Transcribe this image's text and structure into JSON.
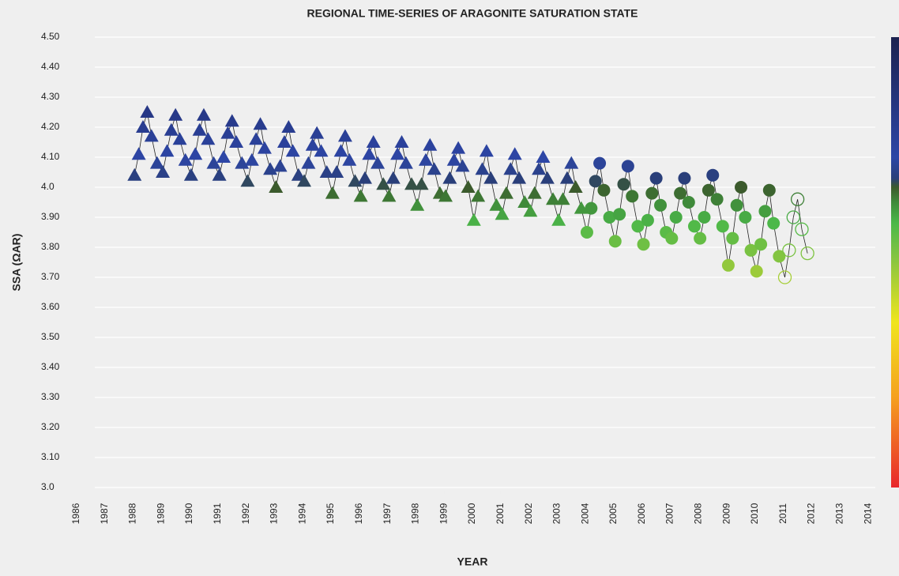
{
  "chart_data": {
    "type": "scatter",
    "title": "REGIONAL TIME-SERIES OF ARAGONITE SATURATION STATE",
    "xlabel": "YEAR",
    "ylabel": "SSA (ΩAR)",
    "xlim": [
      1985.5,
      2014.5
    ],
    "xticks": [
      1986,
      1987,
      1988,
      1989,
      1990,
      1991,
      1992,
      1993,
      1994,
      1995,
      1996,
      1997,
      1998,
      1999,
      2000,
      2001,
      2002,
      2003,
      2004,
      2005,
      2006,
      2007,
      2008,
      2009,
      2010,
      2011,
      2012,
      2013,
      2014
    ],
    "ylim": [
      3.0,
      4.5
    ],
    "yticks": [
      {
        "value": 4.5,
        "label": "4.50"
      },
      {
        "value": 4.4,
        "label": "4.40"
      },
      {
        "value": 4.3,
        "label": "4.30"
      },
      {
        "value": 4.2,
        "label": "4.20"
      },
      {
        "value": 4.1,
        "label": "4.10"
      },
      {
        "value": 4.0,
        "label": "4.0"
      },
      {
        "value": 3.9,
        "label": "3.90"
      },
      {
        "value": 3.8,
        "label": "3.80"
      },
      {
        "value": 3.7,
        "label": "3.70"
      },
      {
        "value": 3.6,
        "label": "3.60"
      },
      {
        "value": 3.5,
        "label": "3.50"
      },
      {
        "value": 3.4,
        "label": "3.40"
      },
      {
        "value": 3.3,
        "label": "3.30"
      },
      {
        "value": 3.2,
        "label": "3.20"
      },
      {
        "value": 3.1,
        "label": "3.10"
      },
      {
        "value": 3.0,
        "label": "3.0"
      }
    ],
    "grid": true,
    "line_color": "#222222",
    "colorscale": [
      {
        "value": 4.5,
        "color": "#1c2250"
      },
      {
        "value": 4.1,
        "color": "#2d46a6"
      },
      {
        "value": 4.03,
        "color": "#2a3f7a"
      },
      {
        "value": 4.0,
        "color": "#3b5a2c"
      },
      {
        "value": 3.95,
        "color": "#3f8a3a"
      },
      {
        "value": 3.88,
        "color": "#4cb849"
      },
      {
        "value": 3.75,
        "color": "#8dc63f"
      },
      {
        "value": 3.55,
        "color": "#f0e51d"
      },
      {
        "value": 3.3,
        "color": "#f5a01f"
      },
      {
        "value": 3.0,
        "color": "#e8262b"
      }
    ],
    "series": [
      {
        "marker": "triangle",
        "filled": true,
        "x": [
          1988.05,
          1988.2,
          1988.35,
          1988.5,
          1988.65,
          1988.85,
          1989.05,
          1989.2,
          1989.35,
          1989.5,
          1989.65,
          1989.85,
          1990.05,
          1990.2,
          1990.35,
          1990.5,
          1990.65,
          1990.85,
          1991.05,
          1991.2,
          1991.35,
          1991.5,
          1991.65,
          1991.85,
          1992.05,
          1992.2,
          1992.35,
          1992.5,
          1992.65,
          1992.85,
          1993.05,
          1993.2,
          1993.35,
          1993.5,
          1993.65,
          1993.85,
          1994.05,
          1994.2,
          1994.35,
          1994.5,
          1994.65,
          1994.85,
          1995.05,
          1995.2,
          1995.35,
          1995.5,
          1995.65,
          1995.85,
          1996.05,
          1996.2,
          1996.35,
          1996.5,
          1996.65,
          1996.85,
          1997.05,
          1997.2,
          1997.35,
          1997.5,
          1997.65,
          1997.85,
          1998.05,
          1998.2,
          1998.35,
          1998.5,
          1998.65,
          1998.85,
          1999.05,
          1999.2,
          1999.35,
          1999.5,
          1999.65,
          1999.85,
          2000.05,
          2000.2,
          2000.35,
          2000.5,
          2000.65,
          2000.85,
          2001.05,
          2001.2,
          2001.35,
          2001.5,
          2001.65,
          2001.85,
          2002.05,
          2002.2,
          2002.35,
          2002.5,
          2002.65,
          2002.85,
          2003.05,
          2003.2,
          2003.35,
          2003.5,
          2003.65,
          2003.85
        ],
        "values": [
          4.04,
          4.11,
          4.2,
          4.25,
          4.17,
          4.08,
          4.05,
          4.12,
          4.19,
          4.24,
          4.16,
          4.09,
          4.04,
          4.11,
          4.19,
          4.24,
          4.16,
          4.08,
          4.04,
          4.1,
          4.18,
          4.22,
          4.15,
          4.08,
          4.02,
          4.09,
          4.16,
          4.21,
          4.13,
          4.06,
          4.0,
          4.07,
          4.15,
          4.2,
          4.12,
          4.04,
          4.02,
          4.08,
          4.14,
          4.18,
          4.12,
          4.05,
          3.98,
          4.05,
          4.12,
          4.17,
          4.09,
          4.02,
          3.97,
          4.03,
          4.11,
          4.15,
          4.08,
          4.01,
          3.97,
          4.03,
          4.11,
          4.15,
          4.08,
          4.01,
          3.94,
          4.01,
          4.09,
          4.14,
          4.06,
          3.98,
          3.97,
          4.03,
          4.09,
          4.13,
          4.07,
          4.0,
          3.89,
          3.97,
          4.06,
          4.12,
          4.03,
          3.94,
          3.91,
          3.98,
          4.06,
          4.11,
          4.03,
          3.95,
          3.92,
          3.98,
          4.06,
          4.1,
          4.03,
          3.96,
          3.89,
          3.96,
          4.03,
          4.08,
          4.0,
          3.93
        ]
      },
      {
        "marker": "circle",
        "filled": true,
        "x": [
          2004.05,
          2004.2,
          2004.35,
          2004.5,
          2004.65,
          2004.85,
          2005.05,
          2005.2,
          2005.35,
          2005.5,
          2005.65,
          2005.85,
          2006.05,
          2006.2,
          2006.35,
          2006.5,
          2006.65,
          2006.85,
          2007.05,
          2007.2,
          2007.35,
          2007.5,
          2007.65,
          2007.85,
          2008.05,
          2008.2,
          2008.35,
          2008.5,
          2008.65,
          2008.85,
          2009.05,
          2009.2,
          2009.35,
          2009.5,
          2009.65,
          2009.85,
          2010.05,
          2010.2,
          2010.35,
          2010.5,
          2010.65,
          2010.85
        ],
        "values": [
          3.85,
          3.93,
          4.02,
          4.08,
          3.99,
          3.9,
          3.82,
          3.91,
          4.01,
          4.07,
          3.97,
          3.87,
          3.81,
          3.89,
          3.98,
          4.03,
          3.94,
          3.85,
          3.83,
          3.9,
          3.98,
          4.03,
          3.95,
          3.87,
          3.83,
          3.9,
          3.99,
          4.04,
          3.96,
          3.87,
          3.74,
          3.83,
          3.94,
          4.0,
          3.9,
          3.79,
          3.72,
          3.81,
          3.92,
          3.99,
          3.88,
          3.77
        ]
      },
      {
        "marker": "circle",
        "filled": false,
        "x": [
          2011.05,
          2011.2,
          2011.35,
          2011.5,
          2011.65,
          2011.85
        ],
        "values": [
          3.7,
          3.79,
          3.9,
          3.96,
          3.86,
          3.78
        ]
      }
    ]
  }
}
